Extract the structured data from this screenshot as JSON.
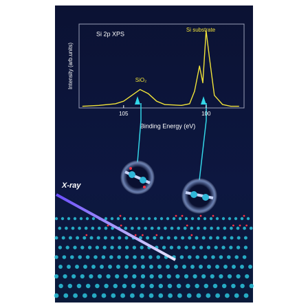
{
  "chart_data": {
    "type": "line",
    "title": "Si 2p XPS",
    "x_label": "Binding Energy (eV)",
    "y_label": "Intensity (arb.units)",
    "annotations": [
      "Si substrate",
      "SiO₂",
      "X-ray"
    ],
    "x": [
      107.5,
      106.5,
      105.5,
      105,
      104.5,
      104,
      103.5,
      103,
      102.5,
      101.5,
      101,
      100.7,
      100.4,
      100.2,
      100,
      99.8,
      99.5,
      99,
      98.5,
      98
    ],
    "series": [
      {
        "name": "Si 2p",
        "color": "#f2e43a",
        "values": [
          0.02,
          0.03,
          0.05,
          0.08,
          0.15,
          0.22,
          0.17,
          0.08,
          0.04,
          0.03,
          0.05,
          0.2,
          0.5,
          0.3,
          0.92,
          0.6,
          0.15,
          0.04,
          0.02,
          0.02
        ]
      }
    ],
    "xlim": [
      107.7,
      97.7
    ],
    "xticks": [
      105,
      100
    ],
    "ylim": [
      0,
      1
    ]
  }
}
